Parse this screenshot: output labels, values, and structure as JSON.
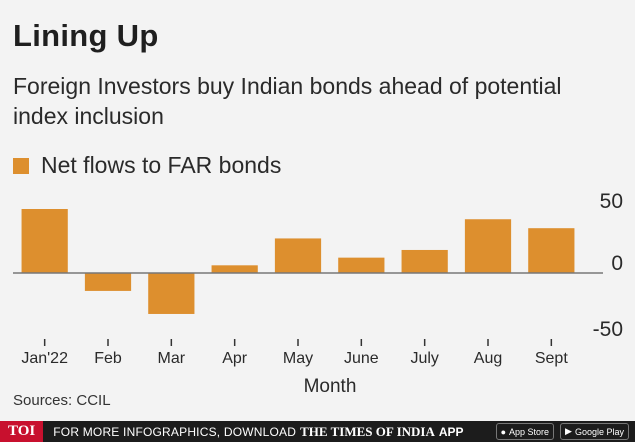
{
  "title": "Lining Up",
  "subtitle": "Foreign Investors buy Indian bonds ahead of potential index inclusion",
  "colors": {
    "bar": "#dd8f2e",
    "axis": "#777777",
    "text": "#2a2a2a"
  },
  "chart_data": {
    "type": "bar",
    "legend": "Net flows to FAR bonds",
    "categories": [
      "Jan'22",
      "Feb",
      "Mar",
      "Apr",
      "May",
      "June",
      "July",
      "Aug",
      "Sept"
    ],
    "series": [
      {
        "name": "Net flows to FAR bonds",
        "values": [
          50,
          -14,
          -32,
          6,
          27,
          12,
          18,
          42,
          35
        ]
      }
    ],
    "yticks": [
      50,
      0,
      -50
    ],
    "ylim": [
      -50,
      55
    ],
    "xlabel": "Month",
    "ylabel": "",
    "grid": false
  },
  "source": "Sources: CCIL",
  "footer": {
    "brand": "TOI",
    "cta": "FOR MORE INFOGRAPHICS, DOWNLOAD",
    "paper": "THE TIMES OF INDIA",
    "app": "APP",
    "app_store": "App Store",
    "google_play": "Google Play"
  }
}
